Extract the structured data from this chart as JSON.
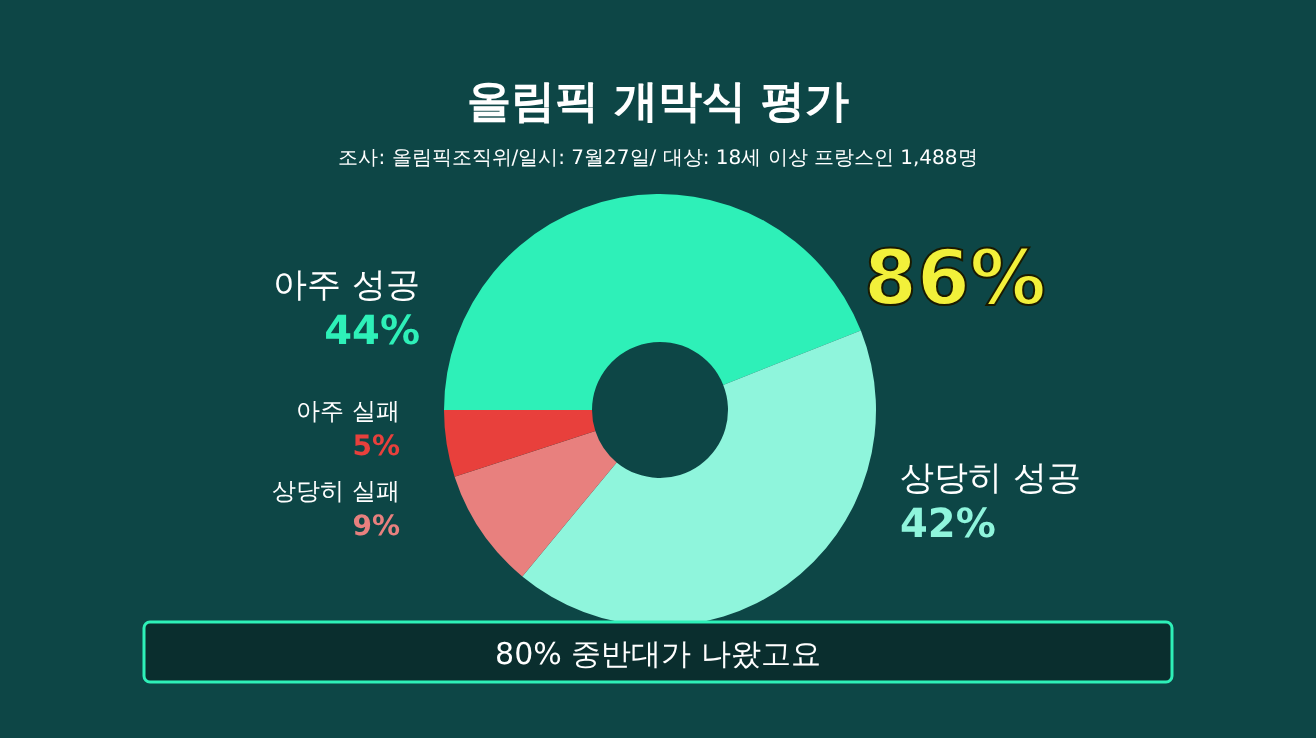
{
  "chart_data": {
    "type": "donut",
    "title": "올림픽 개막식 평가",
    "subtitle": "조사: 올림픽조직위/일시: 7월27일/ 대상: 18세 이상 프랑스인 1,488명",
    "categories": [
      "아주 성공",
      "상당히 성공",
      "상당히 실패",
      "아주 실패"
    ],
    "values": [
      44,
      42,
      9,
      5
    ],
    "colors": [
      "#2ef0b8",
      "#8ff5dc",
      "#e8807e",
      "#e8403c"
    ],
    "value_labels": [
      "44%",
      "42%",
      "9%",
      "5%"
    ],
    "annotations": [
      "86%",
      "80% 중반대가 나왔고요"
    ]
  }
}
